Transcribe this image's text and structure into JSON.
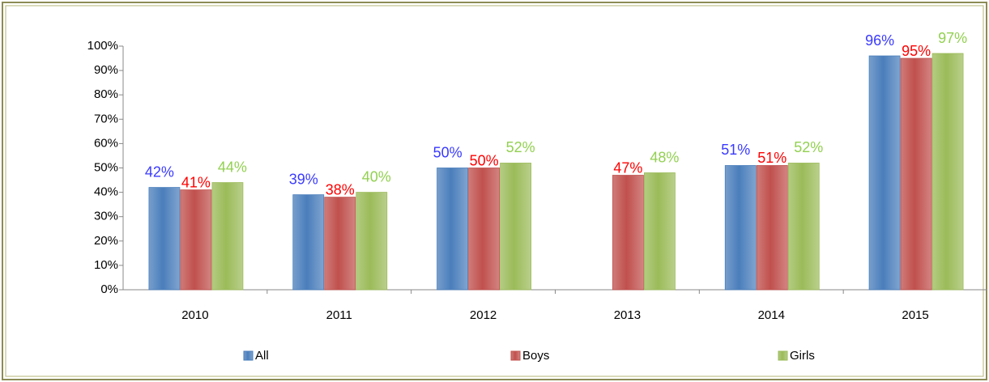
{
  "chart_data": {
    "type": "bar",
    "categories": [
      "2010",
      "2011",
      "2012",
      "2013",
      "2014",
      "2015"
    ],
    "series": [
      {
        "name": "All",
        "color": "#4a7ebb",
        "label_color": "#3a3aff",
        "values": [
          42,
          39,
          50,
          null,
          51,
          96
        ],
        "value_labels": [
          "42%",
          "39%",
          "50%",
          null,
          "51%",
          "96%"
        ]
      },
      {
        "name": "Boys",
        "color": "#c0504d",
        "label_color": "#ff0000",
        "values": [
          41,
          38,
          50,
          47,
          51,
          95
        ],
        "value_labels": [
          "41%",
          "38%",
          "50%",
          "47%",
          "51%",
          "95%"
        ]
      },
      {
        "name": "Girls",
        "color": "#9bbb59",
        "label_color": "#92d050",
        "values": [
          44,
          40,
          52,
          48,
          52,
          97
        ],
        "value_labels": [
          "44%",
          "40%",
          "52%",
          "48%",
          "52%",
          "97%"
        ]
      }
    ],
    "ylim": [
      0,
      100
    ],
    "yticks": [
      {
        "value": 0,
        "label": "0%"
      },
      {
        "value": 10,
        "label": "10%"
      },
      {
        "value": 20,
        "label": "20%"
      },
      {
        "value": 30,
        "label": "30%"
      },
      {
        "value": 40,
        "label": "40%"
      },
      {
        "value": 50,
        "label": "50%"
      },
      {
        "value": 60,
        "label": "60%"
      },
      {
        "value": 70,
        "label": "70%"
      },
      {
        "value": 80,
        "label": "80%"
      },
      {
        "value": 90,
        "label": "90%"
      },
      {
        "value": 100,
        "label": "100%"
      }
    ],
    "legend": "bottom"
  }
}
